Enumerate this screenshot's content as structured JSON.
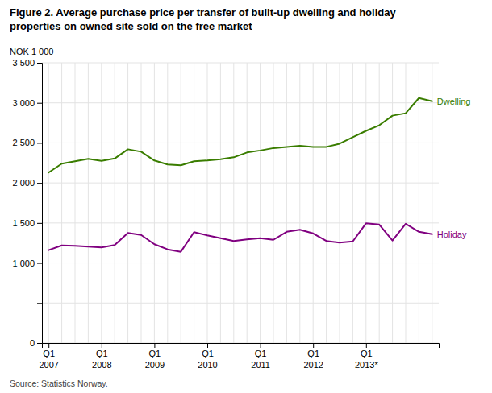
{
  "chart_data": {
    "type": "line",
    "title": "Figure 2. Average purchase price per transfer of built-up dwelling and holiday\nproperties on owned site sold on the free market",
    "y_label": "NOK 1 000",
    "source": "Source: Statistics Norway.",
    "categories": [
      "Q1\n2007",
      null,
      null,
      null,
      "Q1\n2008",
      null,
      null,
      null,
      "Q1\n2009",
      null,
      null,
      null,
      "Q1\n2010",
      null,
      null,
      null,
      "Q1\n2011",
      null,
      null,
      null,
      "Q1\n2012",
      null,
      null,
      null,
      "Q1\n2013*",
      null,
      null,
      null,
      null,
      null
    ],
    "series": [
      {
        "name": "Dwelling",
        "color": "#3a7d00",
        "values": [
          2130,
          2240,
          2270,
          2300,
          2275,
          2305,
          2420,
          2390,
          2280,
          2230,
          2220,
          2270,
          2280,
          2295,
          2320,
          2380,
          2405,
          2435,
          2450,
          2465,
          2450,
          2450,
          2490,
          2570,
          2650,
          2720,
          2840,
          2870,
          3060,
          3020
        ]
      },
      {
        "name": "Holiday",
        "color": "#800080",
        "values": [
          1160,
          1220,
          1215,
          1205,
          1195,
          1225,
          1375,
          1350,
          1235,
          1170,
          1140,
          1385,
          1345,
          1310,
          1275,
          1295,
          1310,
          1290,
          1390,
          1415,
          1370,
          1275,
          1255,
          1270,
          1495,
          1480,
          1280,
          1490,
          1390,
          1360
        ]
      }
    ],
    "ylim": [
      0,
      3500
    ],
    "yticks": [
      0,
      {
        "value": 500,
        "label": null
      },
      {
        "value": 1000,
        "label": "1 000"
      },
      {
        "value": 1500,
        "label": "1 500"
      },
      {
        "value": 2000,
        "label": "2 000"
      },
      {
        "value": 2500,
        "label": "2 500"
      },
      {
        "value": 3000,
        "label": "3 000"
      },
      {
        "value": 3500,
        "label": "3 500"
      }
    ],
    "grid": true
  }
}
